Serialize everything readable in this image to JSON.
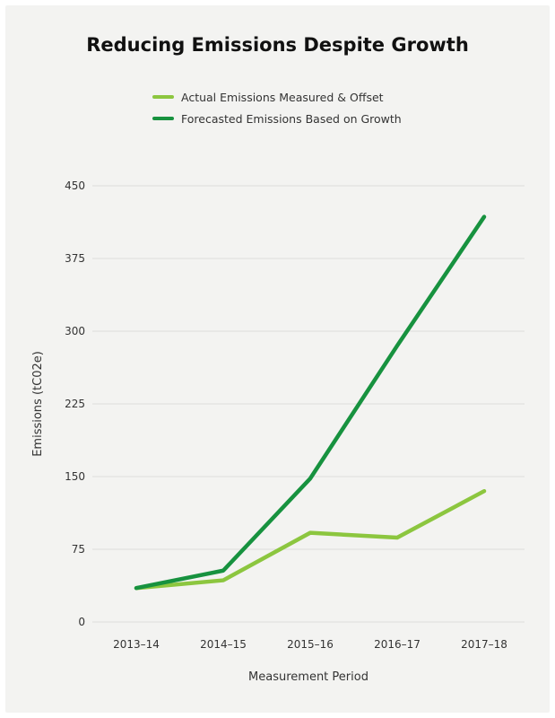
{
  "chart_data": {
    "type": "line",
    "title": "Reducing Emissions Despite Growth",
    "xlabel": "Measurement Period",
    "ylabel": "Emissions (tC02e)",
    "categories": [
      "2013–14",
      "2014–15",
      "2015–16",
      "2016–17",
      "2017–18"
    ],
    "yticks": [
      0,
      75,
      150,
      225,
      300,
      375,
      450
    ],
    "ylim": [
      0,
      450
    ],
    "grid": true,
    "legend_position": "top",
    "series": [
      {
        "name": "Actual Emissions Measured & Offset",
        "color": "#8cc63f",
        "values": [
          35,
          43,
          92,
          87,
          135
        ]
      },
      {
        "name": "Forecasted Emissions Based on Growth",
        "color": "#17923f",
        "values": [
          35,
          53,
          148,
          285,
          418
        ]
      }
    ]
  }
}
